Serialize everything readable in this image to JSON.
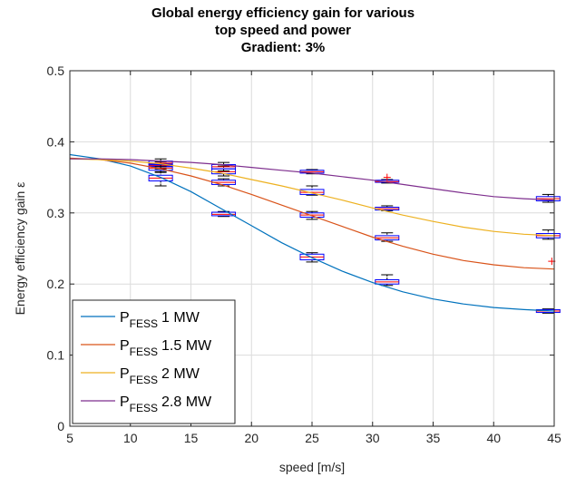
{
  "chart_data": {
    "type": "line",
    "title": [
      "Global energy efficiency gain for various",
      "top speed and power",
      "Gradient: 3%"
    ],
    "xlabel": "speed [m/s]",
    "ylabel": "Energy efficiency gain ε",
    "xlim": [
      5,
      45
    ],
    "ylim": [
      0,
      0.5
    ],
    "xticks": [
      5,
      10,
      15,
      20,
      25,
      30,
      35,
      40,
      45
    ],
    "yticks": [
      0,
      0.1,
      0.2,
      0.3,
      0.4,
      0.5
    ],
    "ytick_labels": [
      "0",
      "0.1",
      "0.2",
      "0.3",
      "0.4",
      "0.5"
    ],
    "grid": true,
    "legend_position": "bottom-left",
    "series": [
      {
        "name": "1 MW",
        "legend_prefix": "P",
        "legend_sub": "FESS",
        "color": "#0072BD",
        "x": [
          5,
          7.5,
          10,
          12.5,
          15,
          17.5,
          20,
          22.5,
          25,
          27.5,
          30,
          32.5,
          35,
          37.5,
          40,
          42.5,
          45
        ],
        "y": [
          0.382,
          0.376,
          0.366,
          0.35,
          0.33,
          0.306,
          0.282,
          0.258,
          0.237,
          0.218,
          0.202,
          0.189,
          0.179,
          0.172,
          0.167,
          0.164,
          0.162
        ]
      },
      {
        "name": "1.5 MW",
        "legend_prefix": "P",
        "legend_sub": "FESS",
        "color": "#D95319",
        "x": [
          5,
          7.5,
          10,
          12.5,
          15,
          17.5,
          20,
          22.5,
          25,
          27.5,
          30,
          32.5,
          35,
          37.5,
          40,
          42.5,
          45
        ],
        "y": [
          0.377,
          0.375,
          0.37,
          0.362,
          0.352,
          0.34,
          0.326,
          0.311,
          0.296,
          0.281,
          0.266,
          0.253,
          0.242,
          0.233,
          0.227,
          0.223,
          0.221
        ]
      },
      {
        "name": "2 MW",
        "legend_prefix": "P",
        "legend_sub": "FESS",
        "color": "#EDB120",
        "x": [
          5,
          7.5,
          10,
          12.5,
          15,
          17.5,
          20,
          22.5,
          25,
          27.5,
          30,
          32.5,
          35,
          37.5,
          40,
          42.5,
          45
        ],
        "y": [
          0.376,
          0.375,
          0.373,
          0.369,
          0.363,
          0.356,
          0.347,
          0.338,
          0.328,
          0.318,
          0.307,
          0.297,
          0.288,
          0.28,
          0.274,
          0.27,
          0.268
        ]
      },
      {
        "name": "2.8 MW",
        "legend_prefix": "P",
        "legend_sub": "FESS",
        "color": "#7E2F8E",
        "x": [
          5,
          7.5,
          10,
          12.5,
          15,
          17.5,
          20,
          22.5,
          25,
          27.5,
          30,
          32.5,
          35,
          37.5,
          40,
          42.5,
          45
        ],
        "y": [
          0.376,
          0.376,
          0.375,
          0.373,
          0.371,
          0.368,
          0.364,
          0.36,
          0.356,
          0.351,
          0.346,
          0.34,
          0.334,
          0.328,
          0.323,
          0.32,
          0.318
        ]
      }
    ],
    "boxplots": [
      {
        "x": 12.5,
        "boxes": [
          {
            "low": 0.338,
            "q1": 0.345,
            "median": 0.349,
            "q3": 0.353,
            "high": 0.358
          },
          {
            "low": 0.357,
            "q1": 0.36,
            "median": 0.363,
            "q3": 0.366,
            "high": 0.37
          },
          {
            "low": 0.362,
            "q1": 0.365,
            "median": 0.367,
            "q3": 0.369,
            "high": 0.372
          },
          {
            "low": 0.365,
            "q1": 0.368,
            "median": 0.37,
            "q3": 0.373,
            "high": 0.376
          }
        ]
      },
      {
        "x": 17.7,
        "boxes": [
          {
            "low": 0.295,
            "q1": 0.296,
            "median": 0.298,
            "q3": 0.301,
            "high": 0.302
          },
          {
            "low": 0.338,
            "q1": 0.34,
            "median": 0.343,
            "q3": 0.346,
            "high": 0.348
          },
          {
            "low": 0.352,
            "q1": 0.355,
            "median": 0.358,
            "q3": 0.362,
            "high": 0.366
          },
          {
            "low": 0.359,
            "q1": 0.362,
            "median": 0.365,
            "q3": 0.368,
            "high": 0.371
          }
        ]
      },
      {
        "x": 25,
        "boxes": [
          {
            "low": 0.231,
            "q1": 0.234,
            "median": 0.238,
            "q3": 0.242,
            "high": 0.244
          },
          {
            "low": 0.291,
            "q1": 0.294,
            "median": 0.297,
            "q3": 0.3,
            "high": 0.302
          },
          {
            "low": 0.325,
            "q1": 0.326,
            "median": 0.329,
            "q3": 0.333,
            "high": 0.338
          },
          {
            "low": 0.355,
            "q1": 0.356,
            "median": 0.358,
            "q3": 0.36,
            "high": 0.361
          }
        ]
      },
      {
        "x": 31.2,
        "boxes": [
          {
            "low": 0.198,
            "q1": 0.2,
            "median": 0.203,
            "q3": 0.206,
            "high": 0.213
          },
          {
            "low": 0.26,
            "q1": 0.262,
            "median": 0.265,
            "q3": 0.268,
            "high": 0.272
          },
          {
            "low": 0.303,
            "q1": 0.304,
            "median": 0.306,
            "q3": 0.308,
            "high": 0.31
          },
          {
            "low": 0.342,
            "q1": 0.343,
            "median": 0.344,
            "q3": 0.346,
            "high": 0.347
          }
        ]
      },
      {
        "x": 44.5,
        "boxes": [
          {
            "low": 0.159,
            "q1": 0.16,
            "median": 0.162,
            "q3": 0.164,
            "high": 0.165
          },
          {
            "low": 0.263,
            "q1": 0.265,
            "median": 0.268,
            "q3": 0.271,
            "high": 0.276
          },
          {
            "low": 0.315,
            "q1": 0.317,
            "median": 0.32,
            "q3": 0.323,
            "high": 0.326
          }
        ]
      }
    ],
    "outliers": [
      {
        "x": 31.2,
        "y": 0.35
      },
      {
        "x": 44.8,
        "y": 0.232
      }
    ]
  }
}
